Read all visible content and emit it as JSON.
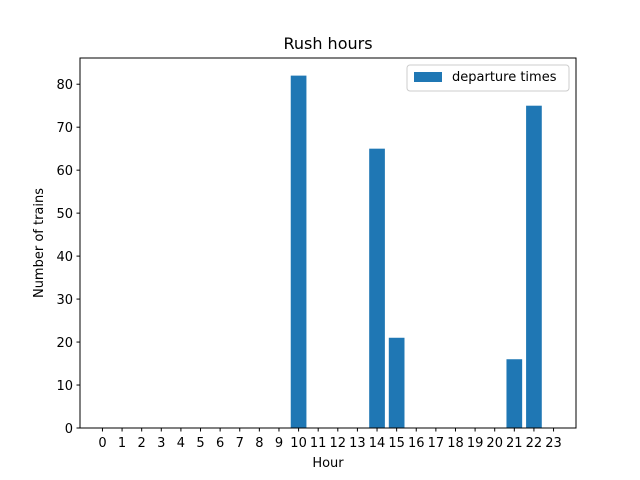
{
  "chart_data": {
    "type": "bar",
    "title": "Rush hours",
    "xlabel": "Hour",
    "ylabel": "Number of trains",
    "categories": [
      "0",
      "1",
      "2",
      "3",
      "4",
      "5",
      "6",
      "7",
      "8",
      "9",
      "10",
      "11",
      "12",
      "13",
      "14",
      "15",
      "16",
      "17",
      "18",
      "19",
      "20",
      "21",
      "22",
      "23"
    ],
    "series": [
      {
        "name": "departure times",
        "color": "#1f77b4",
        "values": [
          0,
          0,
          0,
          0,
          0,
          0,
          0,
          0,
          0,
          0,
          82,
          0,
          0,
          0,
          65,
          21,
          0,
          0,
          0,
          0,
          0,
          16,
          75,
          0
        ]
      }
    ],
    "ylim": [
      0,
      86.1
    ],
    "yticks": [
      0,
      10,
      20,
      30,
      40,
      50,
      60,
      70,
      80
    ],
    "grid": false,
    "legend_position": "top-right"
  }
}
